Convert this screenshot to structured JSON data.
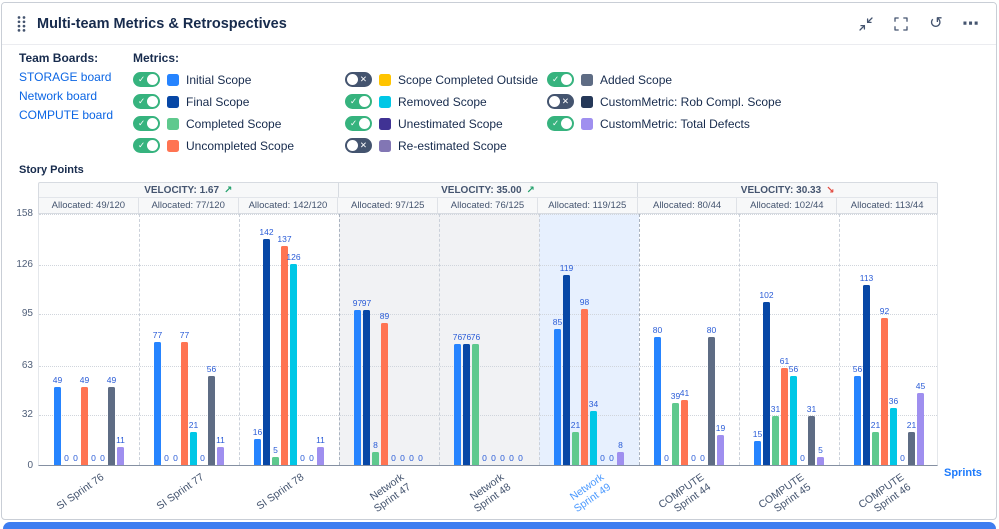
{
  "header": {
    "title": "Multi-team Metrics & Retrospectives",
    "icons": [
      "collapse",
      "fullscreen",
      "refresh",
      "more"
    ]
  },
  "team_boards": {
    "title": "Team Boards:",
    "items": [
      "STORAGE board",
      "Network board",
      "COMPUTE board"
    ]
  },
  "metrics": {
    "title": "Metrics:",
    "items": [
      {
        "label": "Initial Scope",
        "color": "#2684FF",
        "enabled": true,
        "col": 0
      },
      {
        "label": "Final Scope",
        "color": "#0747A6",
        "enabled": true,
        "col": 0
      },
      {
        "label": "Completed Scope",
        "color": "#5FC98E",
        "enabled": true,
        "col": 0
      },
      {
        "label": "Uncompleted Scope",
        "color": "#FF7452",
        "enabled": true,
        "col": 0
      },
      {
        "label": "Scope Completed Outside",
        "color": "#FFC400",
        "enabled": false,
        "col": 1
      },
      {
        "label": "Removed Scope",
        "color": "#00C7E6",
        "enabled": true,
        "col": 1
      },
      {
        "label": "Unestimated Scope",
        "color": "#403294",
        "enabled": true,
        "col": 1
      },
      {
        "label": "Re-estimated Scope",
        "color": "#8276B4",
        "enabled": false,
        "col": 1
      },
      {
        "label": "Added Scope",
        "color": "#5E6C84",
        "enabled": true,
        "col": 2
      },
      {
        "label": "CustomMetric: Rob Compl. Scope",
        "color": "#253858",
        "enabled": false,
        "col": 2
      },
      {
        "label": "CustomMetric: Total Defects",
        "color": "#9F8FEF",
        "enabled": true,
        "col": 2
      }
    ]
  },
  "chart_data": {
    "type": "bar",
    "ylabel": "Story Points",
    "xlabel": "Sprints",
    "ylim": [
      0,
      158
    ],
    "yticks": [
      0,
      32,
      63,
      95,
      126,
      158
    ],
    "groups": [
      {
        "board": "STORAGE",
        "velocity_label": "VELOCITY: 1.67",
        "trend": "up",
        "shaded": false
      },
      {
        "board": "Network",
        "velocity_label": "VELOCITY: 35.00",
        "trend": "up",
        "shaded": true
      },
      {
        "board": "COMPUTE",
        "velocity_label": "VELOCITY: 30.33",
        "trend": "down",
        "shaded": false
      }
    ],
    "categories": [
      "SI Sprint 76",
      "SI Sprint 77",
      "SI Sprint 78",
      "Network Sprint 47",
      "Network Sprint 48",
      "Network Sprint 49",
      "COMPUTE Sprint 44",
      "COMPUTE Sprint 45",
      "COMPUTE Sprint 46"
    ],
    "category_display": [
      "SI Sprint 76",
      "SI Sprint 77",
      "SI Sprint 78",
      "Network\nSprint 47",
      "Network\nSprint 48",
      "Network\nSprint 49",
      "COMPUTE\nSprint 44",
      "COMPUTE\nSprint 45",
      "COMPUTE\nSprint 46"
    ],
    "allocated": [
      "Allocated: 49/120",
      "Allocated: 77/120",
      "Allocated: 142/120",
      "Allocated: 97/125",
      "Allocated: 76/125",
      "Allocated: 119/125",
      "Allocated: 80/44",
      "Allocated: 102/44",
      "Allocated: 113/44"
    ],
    "highlighted_category": "Network Sprint 49",
    "series": [
      {
        "name": "Initial Scope",
        "color": "#2684FF",
        "values": [
          49,
          77,
          16,
          97,
          76,
          85,
          80,
          15,
          56
        ]
      },
      {
        "name": "Final Scope",
        "color": "#0747A6",
        "values": [
          0,
          0,
          142,
          97,
          76,
          119,
          0,
          102,
          113
        ]
      },
      {
        "name": "Completed Scope",
        "color": "#5FC98E",
        "values": [
          0,
          0,
          5,
          8,
          76,
          21,
          39,
          31,
          21
        ]
      },
      {
        "name": "Uncompleted Scope",
        "color": "#FF7452",
        "values": [
          49,
          77,
          137,
          89,
          0,
          98,
          41,
          61,
          92
        ]
      },
      {
        "name": "Removed Scope",
        "color": "#00C7E6",
        "values": [
          0,
          21,
          126,
          0,
          0,
          34,
          0,
          56,
          36
        ]
      },
      {
        "name": "Unestimated Scope",
        "color": "#403294",
        "values": [
          0,
          0,
          0,
          0,
          0,
          0,
          0,
          0,
          0
        ]
      },
      {
        "name": "Added Scope",
        "color": "#5E6C84",
        "values": [
          49,
          56,
          0,
          0,
          0,
          0,
          80,
          31,
          21
        ]
      },
      {
        "name": "CustomMetric: Total Defects",
        "color": "#9F8FEF",
        "values": [
          11,
          11,
          11,
          0,
          0,
          8,
          19,
          5,
          45
        ]
      }
    ]
  },
  "colors": {
    "link": "#0C66E4",
    "toggle_on": "#36B37E",
    "toggle_off": "#44546F",
    "trend_up": "#22A06B",
    "trend_down": "#E2483D",
    "value_label": "#2A5CD7",
    "highlight_column": "#E7F0FE",
    "group_shade": "#F1F2F4",
    "sprint_highlight_label": "#4C9AFF",
    "bottom_panel": "#3D7DF0"
  }
}
